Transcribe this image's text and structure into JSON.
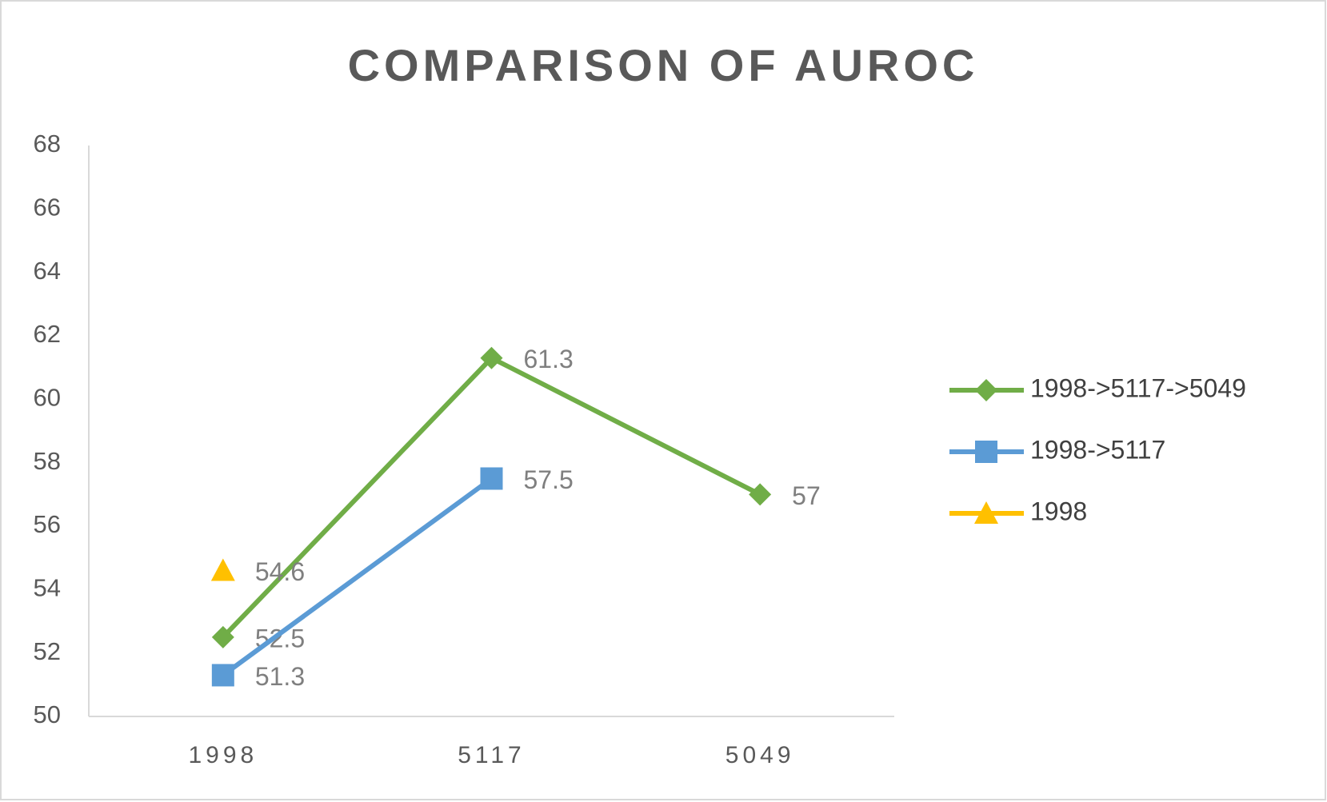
{
  "chart_data": {
    "type": "line",
    "title": "COMPARISON OF AUROC",
    "categories": [
      "1998",
      "5117",
      "5049"
    ],
    "series": [
      {
        "name": "1998->5117->5049",
        "color": "#70ad47",
        "marker": "diamond",
        "values": [
          52.5,
          61.3,
          57
        ]
      },
      {
        "name": "1998->5117",
        "color": "#5b9bd5",
        "marker": "square",
        "values": [
          51.3,
          57.5,
          null
        ]
      },
      {
        "name": "1998",
        "color": "#ffc000",
        "marker": "triangle",
        "values": [
          54.6,
          null,
          null
        ]
      }
    ],
    "ylim": [
      50,
      68
    ],
    "yticks": [
      50,
      52,
      54,
      56,
      58,
      60,
      62,
      64,
      66,
      68
    ],
    "grid": false,
    "legend": "right"
  }
}
